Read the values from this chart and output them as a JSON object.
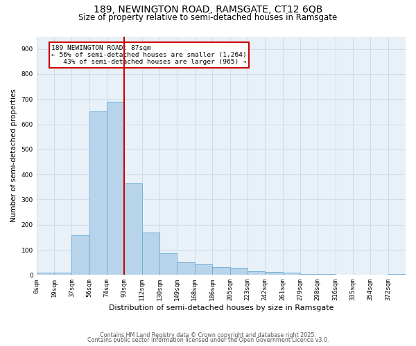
{
  "title1": "189, NEWINGTON ROAD, RAMSGATE, CT12 6QB",
  "title2": "Size of property relative to semi-detached houses in Ramsgate",
  "xlabel": "Distribution of semi-detached houses by size in Ramsgate",
  "ylabel": "Number of semi-detached properties",
  "bar_labels": [
    "0sqm",
    "19sqm",
    "37sqm",
    "56sqm",
    "74sqm",
    "93sqm",
    "112sqm",
    "130sqm",
    "149sqm",
    "168sqm",
    "186sqm",
    "205sqm",
    "223sqm",
    "242sqm",
    "261sqm",
    "279sqm",
    "298sqm",
    "316sqm",
    "335sqm",
    "354sqm",
    "372sqm"
  ],
  "bar_values": [
    8,
    10,
    158,
    652,
    690,
    365,
    168,
    85,
    50,
    42,
    32,
    28,
    16,
    13,
    10,
    5,
    3,
    0,
    0,
    0,
    5
  ],
  "bar_color": "#b8d4ea",
  "bar_edge_color": "#6aaad4",
  "grid_color": "#ccd8e8",
  "background_color": "#e8f0f8",
  "vline_x": 5.0,
  "vline_color": "#cc0000",
  "annotation_text": "189 NEWINGTON ROAD: 87sqm\n← 56% of semi-detached houses are smaller (1,264)\n   43% of semi-detached houses are larger (965) →",
  "annotation_box_color": "#cc0000",
  "ylim": [
    0,
    950
  ],
  "yticks": [
    0,
    100,
    200,
    300,
    400,
    500,
    600,
    700,
    800,
    900
  ],
  "footer1": "Contains HM Land Registry data © Crown copyright and database right 2025.",
  "footer2": "Contains public sector information licensed under the Open Government Licence v3.0.",
  "title1_fontsize": 10,
  "title2_fontsize": 8.5,
  "xlabel_fontsize": 8,
  "ylabel_fontsize": 7.5,
  "tick_fontsize": 6.5,
  "annotation_fontsize": 6.8,
  "footer_fontsize": 5.8
}
